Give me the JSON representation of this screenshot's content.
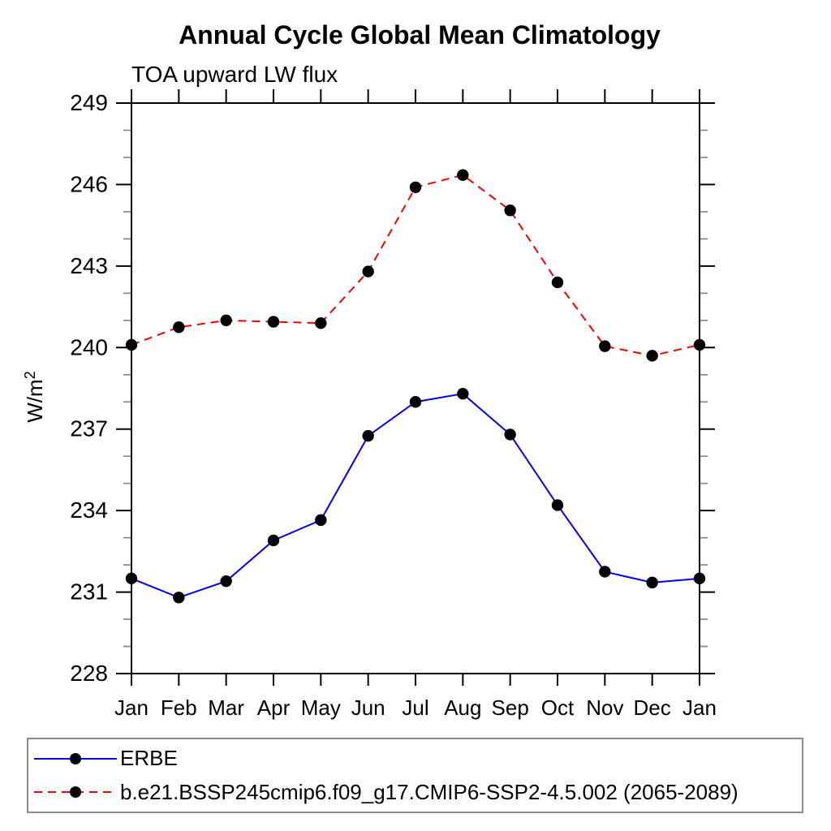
{
  "page": {
    "background": "#ffffff"
  },
  "chart_data": {
    "type": "line",
    "title": "Annual Cycle Global Mean Climatology",
    "subtitle": "TOA upward LW flux",
    "ylabel": "W/m²",
    "xlabel": "",
    "categories": [
      "Jan",
      "Feb",
      "Mar",
      "Apr",
      "May",
      "Jun",
      "Jul",
      "Aug",
      "Sep",
      "Oct",
      "Nov",
      "Dec",
      "Jan"
    ],
    "ylim": [
      228,
      249
    ],
    "ytick_major": [
      228,
      231,
      234,
      237,
      240,
      243,
      246,
      249
    ],
    "ytick_minor_step": 1,
    "grid": false,
    "legend_position": "bottom-box",
    "axis_color": "#000000",
    "minor_tick_color": "#888888",
    "marker_color": "#000000",
    "marker_shape": "filled-circle",
    "series": [
      {
        "name": "ERBE",
        "color": "#0000f0",
        "line_style": "solid",
        "values": [
          231.5,
          230.8,
          231.4,
          232.9,
          233.65,
          236.75,
          238.0,
          238.3,
          236.8,
          234.2,
          231.75,
          231.35,
          231.5
        ]
      },
      {
        "name": "b.e21.BSSP245cmip6.f09_g17.CMIP6-SSP2-4.5.002 (2065-2089)",
        "color": "#f10000",
        "line_style": "dashed",
        "values": [
          240.1,
          240.75,
          241.0,
          240.95,
          240.9,
          242.8,
          245.9,
          246.35,
          245.05,
          242.4,
          240.05,
          239.7,
          240.1
        ]
      }
    ]
  }
}
